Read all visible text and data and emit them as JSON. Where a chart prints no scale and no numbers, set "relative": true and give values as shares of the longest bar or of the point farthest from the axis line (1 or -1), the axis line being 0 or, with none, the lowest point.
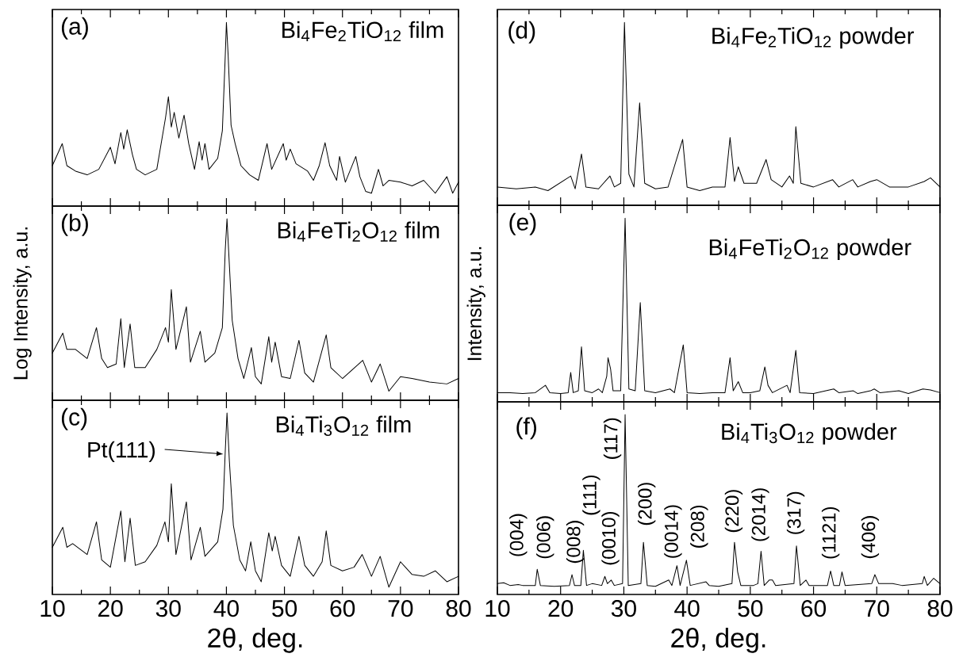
{
  "chart_data": [
    {
      "type": "line",
      "title": "(a)",
      "subtitle": "Bi$_{4}$Fe$_{2}$TiO$_{12}$ film",
      "relative": true,
      "color": "#000000",
      "xlim": [
        10,
        80
      ],
      "xticks": [
        10,
        20,
        30,
        40,
        50,
        60,
        70,
        80
      ],
      "tick_labels": false,
      "x": [
        10,
        11.7,
        12.5,
        14,
        16,
        18,
        20,
        20.8,
        21.8,
        22.3,
        22.9,
        23.8,
        24.5,
        26,
        28,
        29.5,
        30,
        30.5,
        31,
        31.8,
        32.7,
        33.5,
        34.5,
        35.3,
        35.8,
        36.3,
        37,
        38.5,
        39.3,
        39.8,
        40,
        40.3,
        40.8,
        41.5,
        42.5,
        44,
        45.5,
        47,
        47.8,
        49.8,
        50.3,
        51,
        52,
        54,
        55,
        56,
        57,
        57.8,
        59,
        59.5,
        60.5,
        62.3,
        63,
        64,
        65,
        66.2,
        67,
        68,
        70,
        72,
        74,
        76,
        78,
        79,
        80
      ],
      "values": [
        0.22,
        0.34,
        0.22,
        0.19,
        0.17,
        0.2,
        0.32,
        0.23,
        0.4,
        0.31,
        0.415,
        0.28,
        0.2,
        0.17,
        0.2,
        0.48,
        0.595,
        0.43,
        0.51,
        0.37,
        0.495,
        0.34,
        0.2,
        0.35,
        0.25,
        0.34,
        0.2,
        0.26,
        0.41,
        0.82,
        1.0,
        0.82,
        0.44,
        0.34,
        0.22,
        0.17,
        0.14,
        0.34,
        0.2,
        0.34,
        0.25,
        0.31,
        0.23,
        0.19,
        0.14,
        0.22,
        0.345,
        0.22,
        0.14,
        0.27,
        0.13,
        0.27,
        0.16,
        0.08,
        0.07,
        0.2,
        0.11,
        0.14,
        0.13,
        0.11,
        0.14,
        0.07,
        0.16,
        0.07,
        0.13
      ]
    },
    {
      "type": "line",
      "title": "(b)",
      "subtitle": "Bi$_{4}$FeTi$_{2}$O$_{12}$ film",
      "ylabel": "Log Intensity, a.u.",
      "relative": true,
      "color": "#000000",
      "xlim": [
        10,
        80
      ],
      "xticks": [
        10,
        20,
        30,
        40,
        50,
        60,
        70,
        80
      ],
      "tick_labels": false,
      "x": [
        10,
        11.8,
        12.5,
        14,
        16,
        17.6,
        18.5,
        19.5,
        21,
        21.8,
        22.4,
        23.4,
        24.2,
        26,
        28,
        29.5,
        30,
        30.5,
        31.3,
        33.1,
        33.8,
        35.5,
        36.3,
        38,
        39.3,
        39.8,
        40.1,
        40.5,
        41,
        42,
        43,
        44.3,
        45,
        46,
        47.3,
        47.8,
        48.4,
        49.5,
        51,
        52.5,
        53.5,
        55,
        57.2,
        58,
        60,
        63.5,
        65,
        66.5,
        68,
        70,
        72,
        75,
        78,
        80
      ],
      "values": [
        0.26,
        0.37,
        0.28,
        0.28,
        0.23,
        0.4,
        0.23,
        0.18,
        0.2,
        0.45,
        0.18,
        0.42,
        0.18,
        0.18,
        0.28,
        0.4,
        0.32,
        0.61,
        0.28,
        0.515,
        0.21,
        0.38,
        0.21,
        0.26,
        0.4,
        0.83,
        1.0,
        0.75,
        0.44,
        0.23,
        0.12,
        0.29,
        0.13,
        0.09,
        0.35,
        0.21,
        0.32,
        0.13,
        0.12,
        0.33,
        0.15,
        0.1,
        0.36,
        0.18,
        0.12,
        0.22,
        0.1,
        0.2,
        0.05,
        0.13,
        0.12,
        0.1,
        0.09,
        0.12
      ]
    },
    {
      "type": "line",
      "title": "(c)",
      "subtitle": "Bi$_{4}$Ti$_{3}$O$_{12}$ film",
      "xlabel": "2θ, deg.",
      "relative": true,
      "color": "#000000",
      "xlim": [
        10,
        80
      ],
      "xticks": [
        10,
        20,
        30,
        40,
        50,
        60,
        70,
        80
      ],
      "tick_labels": "x",
      "annotations": [
        "Pt(111)"
      ],
      "x": [
        10,
        11.8,
        12.5,
        13.5,
        16,
        17.6,
        18.5,
        20,
        21.8,
        22.5,
        23.4,
        24.3,
        26,
        28,
        29.4,
        30,
        30.5,
        31.3,
        33.1,
        33.9,
        35.5,
        36.3,
        38.5,
        39.4,
        39.8,
        40.1,
        40.5,
        41.2,
        42.3,
        43.3,
        44.2,
        45,
        46,
        47.3,
        47.9,
        48.4,
        49.5,
        51,
        52.5,
        53.5,
        55,
        56.5,
        57.2,
        58,
        60,
        62,
        63.4,
        65,
        66.5,
        68,
        70,
        72,
        74,
        76,
        78,
        80
      ],
      "values": [
        0.26,
        0.37,
        0.26,
        0.28,
        0.22,
        0.4,
        0.19,
        0.15,
        0.46,
        0.18,
        0.42,
        0.16,
        0.18,
        0.27,
        0.4,
        0.29,
        0.61,
        0.22,
        0.51,
        0.19,
        0.37,
        0.21,
        0.29,
        0.47,
        0.79,
        1.0,
        0.74,
        0.38,
        0.19,
        0.13,
        0.29,
        0.13,
        0.07,
        0.34,
        0.24,
        0.32,
        0.16,
        0.1,
        0.32,
        0.16,
        0.1,
        0.18,
        0.35,
        0.16,
        0.13,
        0.15,
        0.22,
        0.1,
        0.21,
        0.04,
        0.18,
        0.11,
        0.1,
        0.13,
        0.07,
        0.1
      ]
    },
    {
      "type": "line",
      "title": "(d)",
      "subtitle": "Bi$_{4}$Fe$_{2}$TiO$_{12}$ powder",
      "relative": true,
      "color": "#000000",
      "xlim": [
        10,
        80
      ],
      "xticks": [
        10,
        20,
        30,
        40,
        50,
        60,
        70,
        80
      ],
      "tick_labels": false,
      "x": [
        10,
        13,
        16,
        18,
        21.6,
        22.3,
        23.3,
        24,
        26,
        27.8,
        28.5,
        29.5,
        30.1,
        30.8,
        31.6,
        32.5,
        33.3,
        35,
        37,
        39.3,
        40,
        42,
        44,
        46,
        46.8,
        47.5,
        48.1,
        49,
        51,
        52.5,
        53.3,
        55,
        56.2,
        56.8,
        57.2,
        58,
        60,
        63,
        64,
        66.2,
        67,
        69,
        70,
        72,
        75,
        77.5,
        78.5,
        80
      ],
      "values": [
        0.1,
        0.09,
        0.1,
        0.08,
        0.16,
        0.09,
        0.28,
        0.1,
        0.09,
        0.16,
        0.1,
        0.12,
        1.0,
        0.17,
        0.1,
        0.56,
        0.12,
        0.09,
        0.1,
        0.36,
        0.1,
        0.08,
        0.1,
        0.1,
        0.37,
        0.13,
        0.21,
        0.12,
        0.12,
        0.25,
        0.14,
        0.1,
        0.16,
        0.12,
        0.43,
        0.12,
        0.1,
        0.14,
        0.1,
        0.14,
        0.1,
        0.13,
        0.14,
        0.1,
        0.1,
        0.13,
        0.15,
        0.1
      ]
    },
    {
      "type": "line",
      "title": "(e)",
      "subtitle": "Bi$_{4}$FeTi$_{2}$O$_{12}$ powder",
      "ylabel": "Intensity, a.u.",
      "relative": true,
      "color": "#000000",
      "xlim": [
        10,
        80
      ],
      "xticks": [
        10,
        20,
        30,
        40,
        50,
        60,
        70,
        80
      ],
      "tick_labels": false,
      "x": [
        10,
        12,
        14,
        16,
        17.6,
        18.3,
        20,
        21.2,
        21.6,
        22,
        22.8,
        23.3,
        23.8,
        25,
        26,
        26.6,
        27.3,
        27.5,
        27.9,
        28.3,
        29.5,
        30.2,
        30.8,
        31.8,
        32.6,
        33.3,
        35,
        37.3,
        38,
        39.4,
        40,
        42,
        44,
        46,
        46.8,
        47.3,
        48.1,
        48.8,
        50,
        51.5,
        52.3,
        52.8,
        53.5,
        55.8,
        56.3,
        57.2,
        57.8,
        60,
        63.2,
        64,
        66.3,
        67,
        69,
        69.6,
        70.5,
        73.5,
        75,
        77.3,
        78.5,
        80
      ],
      "values": [
        0.05,
        0.05,
        0.045,
        0.05,
        0.09,
        0.05,
        0.045,
        0.05,
        0.16,
        0.05,
        0.06,
        0.3,
        0.06,
        0.05,
        0.07,
        0.05,
        0.14,
        0.24,
        0.18,
        0.06,
        0.06,
        1.0,
        0.07,
        0.06,
        0.54,
        0.06,
        0.05,
        0.07,
        0.05,
        0.31,
        0.05,
        0.045,
        0.05,
        0.05,
        0.24,
        0.06,
        0.11,
        0.05,
        0.05,
        0.06,
        0.19,
        0.09,
        0.05,
        0.09,
        0.05,
        0.28,
        0.05,
        0.045,
        0.07,
        0.05,
        0.06,
        0.045,
        0.06,
        0.07,
        0.05,
        0.06,
        0.045,
        0.07,
        0.065,
        0.05
      ]
    },
    {
      "type": "line",
      "title": "(f)",
      "subtitle": "Bi$_{4}$Ti$_{3}$O$_{12}$ powder",
      "xlabel": "2θ, deg.",
      "relative": true,
      "color": "#000000",
      "xlim": [
        10,
        80
      ],
      "xticks": [
        10,
        20,
        30,
        40,
        50,
        60,
        70,
        80
      ],
      "tick_labels": "x",
      "annotations": [
        {
          "text": "(004)",
          "x": 13.3,
          "y": 0.055
        },
        {
          "text": "(006)",
          "x": 16.3,
          "y": 0.14
        },
        {
          "text": "(008)",
          "x": 21.8,
          "y": 0.11
        },
        {
          "text": "(111)",
          "x": 23.6,
          "y": 0.245
        },
        {
          "text": "(0010)",
          "x": 27,
          "y": 0.1
        },
        {
          "text": "(117)",
          "x": 30.2,
          "y": 1.0
        },
        {
          "text": "(200)",
          "x": 33.1,
          "y": 0.29
        },
        {
          "text": "(0014)",
          "x": 38.4,
          "y": 0.16
        },
        {
          "text": "(208)",
          "x": 39.9,
          "y": 0.19
        },
        {
          "text": "(220)",
          "x": 47.5,
          "y": 0.29
        },
        {
          "text": "(2014)",
          "x": 51.7,
          "y": 0.24
        },
        {
          "text": "(317)",
          "x": 57.3,
          "y": 0.27
        },
        {
          "text": "(1121)",
          "x": 62.7,
          "y": 0.13
        },
        {
          "text": "(406)",
          "x": 69.7,
          "y": 0.11
        }
      ],
      "x": [
        10,
        11,
        12,
        13.3,
        14,
        16,
        16.3,
        16.8,
        19,
        21.4,
        21.8,
        22.2,
        23.2,
        23.6,
        24.1,
        25,
        26.5,
        27,
        27.4,
        28,
        28.5,
        29.8,
        30.2,
        30.7,
        32.7,
        33.1,
        33.7,
        35,
        37.1,
        37.6,
        38.4,
        38.9,
        39.9,
        40.5,
        43,
        43.5,
        45,
        47.1,
        47.5,
        48,
        48.5,
        50.5,
        51.2,
        51.7,
        52.2,
        53,
        53.5,
        54,
        56.9,
        57.3,
        57.9,
        58.8,
        59.3,
        62.2,
        62.7,
        63.2,
        64.1,
        64.5,
        65,
        69.2,
        69.7,
        70.3,
        72.5,
        74,
        77.2,
        77.5,
        78,
        79,
        80
      ],
      "values": [
        0.06,
        0.065,
        0.05,
        0.055,
        0.05,
        0.05,
        0.14,
        0.05,
        0.045,
        0.05,
        0.11,
        0.05,
        0.05,
        0.245,
        0.05,
        0.06,
        0.05,
        0.1,
        0.06,
        0.08,
        0.05,
        0.06,
        1.0,
        0.05,
        0.06,
        0.29,
        0.05,
        0.045,
        0.08,
        0.05,
        0.16,
        0.05,
        0.19,
        0.05,
        0.07,
        0.05,
        0.045,
        0.06,
        0.29,
        0.125,
        0.05,
        0.05,
        0.06,
        0.24,
        0.05,
        0.08,
        0.08,
        0.05,
        0.06,
        0.27,
        0.05,
        0.08,
        0.05,
        0.05,
        0.13,
        0.05,
        0.05,
        0.125,
        0.05,
        0.06,
        0.11,
        0.06,
        0.06,
        0.05,
        0.06,
        0.1,
        0.05,
        0.09,
        0.06
      ]
    }
  ]
}
